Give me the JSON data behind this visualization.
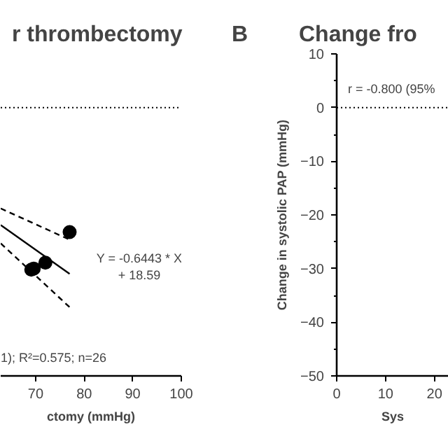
{
  "chart_data": [
    {
      "type": "scatter",
      "title": "r thrombectomy",
      "xlabel": "ctomy (mmHg)",
      "xlim": [
        62.8,
        100
      ],
      "xticks": [
        70,
        80,
        90,
        100
      ],
      "ylim": [
        -50,
        10
      ],
      "tick_labels": "x",
      "grid": false,
      "marker": "circle",
      "series": [
        {
          "color": "#000000",
          "x": [
            69.1,
            69.6,
            72,
            77
          ],
          "values": [
            -30.2,
            -30.0,
            -28.9,
            -23.2
          ]
        },
        {
          "type": "line",
          "marker": "none",
          "color": "#000000",
          "line_style": "solid",
          "x": [
            62.8,
            77
          ],
          "values": [
            -21.9,
            -31.0
          ]
        },
        {
          "type": "line",
          "marker": "none",
          "color": "#000000",
          "line_style": "dashed",
          "x": [
            62.8,
            76.7
          ],
          "values": [
            -18.8,
            -24.5
          ]
        },
        {
          "type": "line",
          "marker": "none",
          "color": "#000000",
          "line_style": "dashed",
          "x": [
            62.8,
            77
          ],
          "values": [
            -25.3,
            -37.2
          ]
        }
      ],
      "ref_lines": [
        {
          "axis": "y",
          "value": 0,
          "line_style": "dotted",
          "color": "#000000"
        }
      ],
      "annotations": [
        "Y = -0.6443 * X\n+ 18.59",
        "1); R²=0.575; n=26"
      ]
    },
    {
      "type": "scatter",
      "title": "Change fro",
      "ylabel": "Change in systolic PAP (mmHg)",
      "xlabel": "Sys",
      "xlim": [
        0,
        22.9
      ],
      "xticks": [
        0,
        10,
        20
      ],
      "ylim": [
        -50,
        10
      ],
      "yticks": [
        -50,
        -40,
        -30,
        -20,
        -10,
        0,
        10
      ],
      "grid": false,
      "ref_lines": [
        {
          "axis": "y",
          "value": 0,
          "line_style": "dotted",
          "color": "#000000"
        }
      ],
      "annotations": [
        "B",
        "r = -0.800 (95%"
      ]
    }
  ]
}
